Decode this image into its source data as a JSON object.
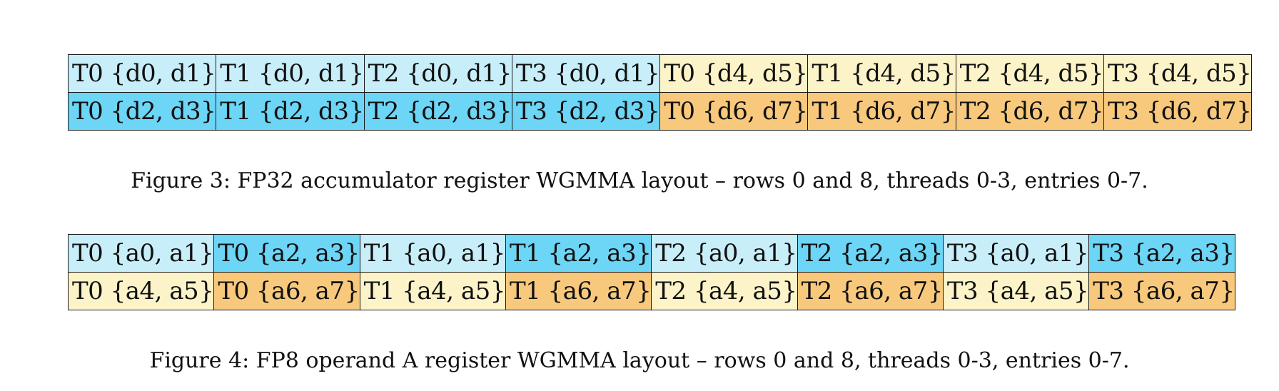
{
  "figures": [
    {
      "caption": "Figure 3: FP32 accumulator register WGMMA layout – rows 0 and 8, threads 0-3, entries 0-7.",
      "rows": [
        [
          {
            "text": "T0 {d0, d1}",
            "color": "#c8eefa"
          },
          {
            "text": "T1 {d0, d1}",
            "color": "#c8eefa"
          },
          {
            "text": "T2 {d0, d1}",
            "color": "#c8eefa"
          },
          {
            "text": "T3 {d0, d1}",
            "color": "#c8eefa"
          },
          {
            "text": "T0 {d4, d5}",
            "color": "#fcf4c8"
          },
          {
            "text": "T1 {d4, d5}",
            "color": "#fcf4c8"
          },
          {
            "text": "T2 {d4, d5}",
            "color": "#fcf4c8"
          },
          {
            "text": "T3 {d4, d5}",
            "color": "#fcf4c8"
          }
        ],
        [
          {
            "text": "T0 {d2, d3}",
            "color": "#6dd5f5"
          },
          {
            "text": "T1 {d2, d3}",
            "color": "#6dd5f5"
          },
          {
            "text": "T2 {d2, d3}",
            "color": "#6dd5f5"
          },
          {
            "text": "T3 {d2, d3}",
            "color": "#6dd5f5"
          },
          {
            "text": "T0 {d6, d7}",
            "color": "#f8c97c"
          },
          {
            "text": "T1 {d6, d7}",
            "color": "#f8c97c"
          },
          {
            "text": "T2 {d6, d7}",
            "color": "#f8c97c"
          },
          {
            "text": "T3 {d6, d7}",
            "color": "#f8c97c"
          }
        ]
      ]
    },
    {
      "caption": "Figure 4: FP8 operand A register WGMMA layout – rows 0 and 8, threads 0-3, entries 0-7.",
      "rows": [
        [
          {
            "text": "T0 {a0, a1}",
            "color": "#c8eefa"
          },
          {
            "text": "T0 {a2, a3}",
            "color": "#6dd5f5"
          },
          {
            "text": "T1 {a0, a1}",
            "color": "#c8eefa"
          },
          {
            "text": "T1 {a2, a3}",
            "color": "#6dd5f5"
          },
          {
            "text": "T2 {a0, a1}",
            "color": "#c8eefa"
          },
          {
            "text": "T2 {a2, a3}",
            "color": "#6dd5f5"
          },
          {
            "text": "T3 {a0, a1}",
            "color": "#c8eefa"
          },
          {
            "text": "T3 {a2, a3}",
            "color": "#6dd5f5"
          }
        ],
        [
          {
            "text": "T0 {a4, a5}",
            "color": "#fcf4c8"
          },
          {
            "text": "T0 {a6, a7}",
            "color": "#f8c97c"
          },
          {
            "text": "T1 {a4, a5}",
            "color": "#fcf4c8"
          },
          {
            "text": "T1 {a6, a7}",
            "color": "#f8c97c"
          },
          {
            "text": "T2 {a4, a5}",
            "color": "#fcf4c8"
          },
          {
            "text": "T2 {a6, a7}",
            "color": "#f8c97c"
          },
          {
            "text": "T3 {a4, a5}",
            "color": "#fcf4c8"
          },
          {
            "text": "T3 {a6, a7}",
            "color": "#f8c97c"
          }
        ]
      ]
    }
  ]
}
